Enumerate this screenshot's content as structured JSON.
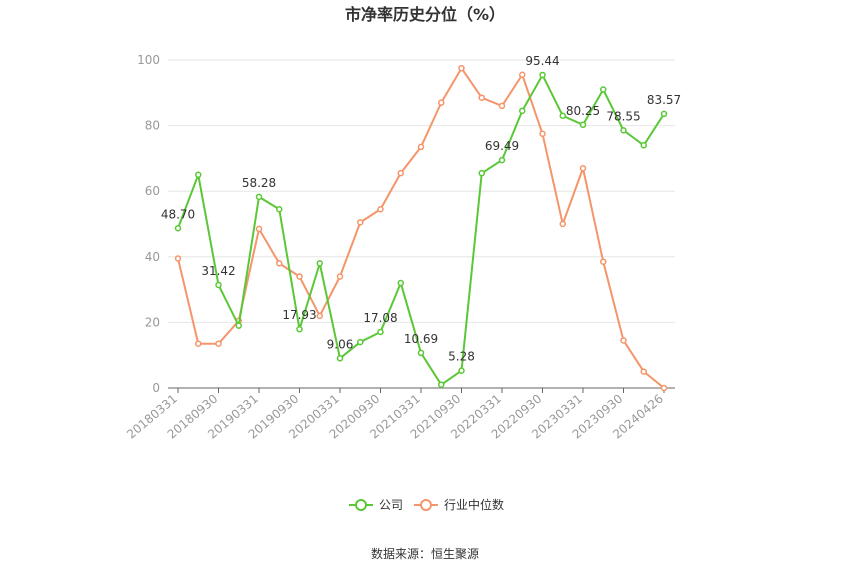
{
  "chart_data": {
    "type": "line",
    "title": "市净率历史分位（%）",
    "xlabel": "",
    "ylabel": "",
    "ylim": [
      0,
      100
    ],
    "yticks": [
      0,
      20,
      40,
      60,
      80,
      100
    ],
    "grid": true,
    "legend_position": "bottom",
    "x": [
      "20180331",
      "20180630",
      "20180930",
      "20181231",
      "20190331",
      "20190630",
      "20190930",
      "20191231",
      "20200331",
      "20200630",
      "20200930",
      "20201231",
      "20210331",
      "20210630",
      "20210930",
      "20211231",
      "20220331",
      "20220630",
      "20220930",
      "20221231",
      "20230331",
      "20230630",
      "20230930",
      "20231231",
      "20240426"
    ],
    "xtick_labels": [
      "20180331",
      "20180930",
      "20190331",
      "20190930",
      "20200331",
      "20200930",
      "20210331",
      "20210930",
      "20220331",
      "20220930",
      "20230331",
      "20230930",
      "20240426"
    ],
    "series": [
      {
        "name": "公司",
        "color": "#5ac836",
        "values": [
          48.7,
          65.0,
          31.42,
          19.0,
          58.28,
          54.5,
          17.93,
          38.0,
          9.06,
          14.0,
          17.08,
          32.0,
          10.69,
          1.0,
          5.28,
          65.5,
          69.49,
          84.5,
          95.44,
          83.0,
          80.25,
          91.0,
          78.55,
          74.0,
          83.57
        ],
        "labels": [
          "48.70",
          "",
          "31.42",
          "",
          "58.28",
          "",
          "17.93",
          "",
          "9.06",
          "",
          "17.08",
          "",
          "10.69",
          "",
          "5.28",
          "",
          "69.49",
          "",
          "95.44",
          "",
          "80.25",
          "",
          "78.55",
          "",
          "83.57"
        ]
      },
      {
        "name": "行业中位数",
        "color": "#f4956a",
        "values": [
          39.5,
          13.5,
          13.5,
          20.5,
          48.5,
          38.0,
          34.0,
          22.0,
          34.0,
          50.5,
          54.5,
          65.5,
          73.5,
          87.0,
          97.5,
          88.5,
          86.0,
          95.5,
          77.5,
          50.0,
          67.0,
          38.5,
          14.5,
          5.0,
          0.0
        ]
      }
    ],
    "source": "数据来源：恒生聚源"
  }
}
